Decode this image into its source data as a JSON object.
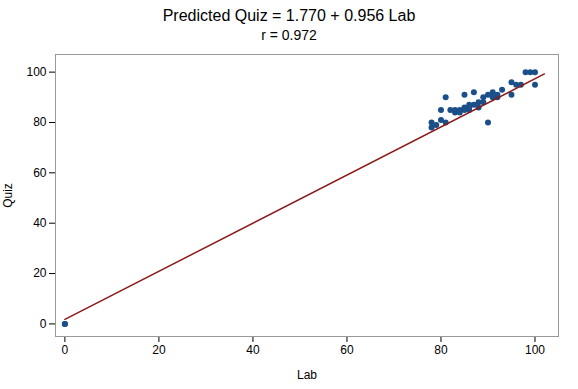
{
  "chart_data": {
    "type": "scatter",
    "title": "Predicted Quiz = 1.770 + 0.956 Lab",
    "subtitle": "r = 0.972",
    "xlabel": "Lab",
    "ylabel": "Quiz",
    "series": [
      {
        "type": "scatter",
        "color": "#1a4f8a",
        "marker": "circle",
        "x": [
          0,
          0,
          78,
          78,
          79,
          80,
          80,
          81,
          81,
          82,
          83,
          83,
          84,
          84,
          85,
          85,
          85,
          86,
          86,
          86,
          87,
          87,
          88,
          88,
          89,
          89,
          90,
          90,
          91,
          91,
          92,
          92,
          93,
          95,
          95,
          96,
          97,
          98,
          99,
          100,
          100
        ],
        "values": [
          0,
          0,
          78,
          80,
          79,
          81,
          85,
          80,
          90,
          85,
          84,
          85,
          84,
          85,
          85,
          86,
          91,
          85,
          86,
          87,
          87,
          92,
          86,
          88,
          88,
          90,
          80,
          91,
          90,
          92,
          90,
          91,
          93,
          91,
          96,
          95,
          95,
          100,
          100,
          95,
          100
        ]
      },
      {
        "type": "line",
        "color": "#8b1a1a",
        "line_style": "solid",
        "x": [
          0,
          102
        ],
        "values": [
          1.77,
          99.282
        ]
      }
    ],
    "xlim": [
      -2,
      105
    ],
    "ylim": [
      -5,
      107
    ],
    "xticks": [
      0,
      20,
      40,
      60,
      80,
      100
    ],
    "yticks": [
      0,
      20,
      40,
      60,
      80,
      100
    ],
    "grid": false
  }
}
